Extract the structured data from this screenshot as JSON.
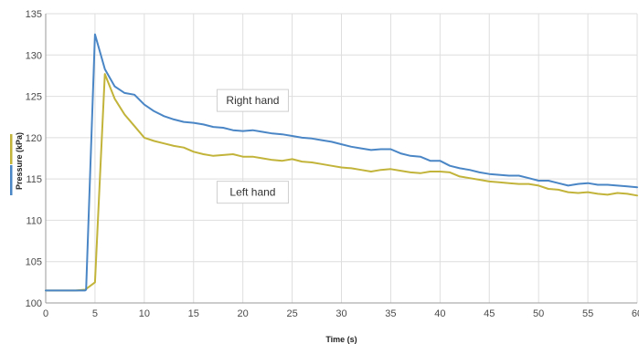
{
  "chart_data": {
    "type": "line",
    "xlabel": "Time (s)",
    "ylabel": "Pressure (kPa)",
    "xlim": [
      0,
      60
    ],
    "ylim": [
      100,
      135
    ],
    "xticks": [
      0,
      5,
      10,
      15,
      20,
      25,
      30,
      35,
      40,
      45,
      50,
      55,
      60
    ],
    "yticks": [
      100,
      105,
      110,
      115,
      120,
      125,
      130,
      135
    ],
    "grid": true,
    "annotations": [
      {
        "text": "Right hand",
        "x": 21,
        "y": 124.5
      },
      {
        "text": "Left hand",
        "x": 21,
        "y": 113.4
      }
    ],
    "series": [
      {
        "name": "Right hand",
        "color": "#4a86c6",
        "x": [
          0,
          1,
          2,
          3,
          4,
          4.1,
          5,
          6,
          7,
          8,
          9,
          10,
          11,
          12,
          13,
          14,
          15,
          16,
          17,
          18,
          19,
          20,
          21,
          22,
          23,
          24,
          25,
          26,
          27,
          28,
          29,
          30,
          31,
          32,
          33,
          34,
          35,
          36,
          37,
          38,
          39,
          40,
          41,
          42,
          43,
          44,
          45,
          46,
          47,
          48,
          49,
          50,
          51,
          52,
          53,
          54,
          55,
          56,
          57,
          58,
          59,
          60
        ],
        "values": [
          101.5,
          101.5,
          101.5,
          101.5,
          101.5,
          101.6,
          132.5,
          128.3,
          126.2,
          125.4,
          125.2,
          124.0,
          123.2,
          122.6,
          122.2,
          121.9,
          121.8,
          121.6,
          121.3,
          121.2,
          120.9,
          120.8,
          120.9,
          120.7,
          120.5,
          120.4,
          120.2,
          120.0,
          119.9,
          119.7,
          119.5,
          119.2,
          118.9,
          118.7,
          118.5,
          118.6,
          118.6,
          118.1,
          117.8,
          117.7,
          117.2,
          117.2,
          116.6,
          116.3,
          116.1,
          115.8,
          115.6,
          115.5,
          115.4,
          115.4,
          115.1,
          114.8,
          114.8,
          114.5,
          114.2,
          114.4,
          114.5,
          114.3,
          114.3,
          114.2,
          114.1,
          114.0
        ]
      },
      {
        "name": "Left hand",
        "color": "#c2b33a",
        "x": [
          0,
          1,
          2,
          3,
          4,
          5,
          6,
          7,
          8,
          9,
          10,
          11,
          12,
          13,
          14,
          15,
          16,
          17,
          18,
          19,
          20,
          21,
          22,
          23,
          24,
          25,
          26,
          27,
          28,
          29,
          30,
          31,
          32,
          33,
          34,
          35,
          36,
          37,
          38,
          39,
          40,
          41,
          42,
          43,
          44,
          45,
          46,
          47,
          48,
          49,
          50,
          51,
          52,
          53,
          54,
          55,
          56,
          57,
          58,
          59,
          60
        ],
        "values": [
          101.5,
          101.5,
          101.5,
          101.5,
          101.6,
          102.5,
          127.7,
          124.7,
          122.8,
          121.4,
          120.0,
          119.6,
          119.3,
          119.0,
          118.8,
          118.3,
          118.0,
          117.8,
          117.9,
          118.0,
          117.7,
          117.7,
          117.5,
          117.3,
          117.2,
          117.4,
          117.1,
          117.0,
          116.8,
          116.6,
          116.4,
          116.3,
          116.1,
          115.9,
          116.1,
          116.2,
          116.0,
          115.8,
          115.7,
          115.9,
          115.9,
          115.8,
          115.3,
          115.1,
          114.9,
          114.7,
          114.6,
          114.5,
          114.4,
          114.4,
          114.2,
          113.8,
          113.7,
          113.4,
          113.3,
          113.4,
          113.2,
          113.1,
          113.3,
          113.2,
          113.0
        ]
      }
    ]
  }
}
